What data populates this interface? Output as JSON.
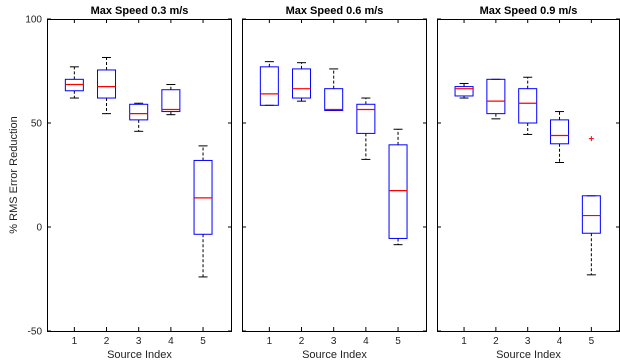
{
  "colors": {
    "box": "#0000ff",
    "median": "#ff0000",
    "whisker": "#000000",
    "outlier": "#ff0000",
    "axes": "#000000"
  },
  "chart_data": {
    "type": "boxplot",
    "ylabel": "% RMS Error Reduction",
    "ylim": [
      -50,
      100
    ],
    "yticks": [
      -50,
      0,
      50,
      100
    ],
    "grid": false,
    "panels": [
      {
        "title": "Max Speed 0.3 m/s",
        "xlabel": "Source Index",
        "categories": [
          "1",
          "2",
          "3",
          "4",
          "5"
        ],
        "boxes": [
          {
            "min": 62,
            "q1": 65.5,
            "median": 68.5,
            "q3": 71,
            "max": 77,
            "outliers": []
          },
          {
            "min": 54.5,
            "q1": 62,
            "median": 67.5,
            "q3": 75.5,
            "max": 81.5,
            "outliers": []
          },
          {
            "min": 46,
            "q1": 51.5,
            "median": 54.5,
            "q3": 59,
            "max": 59.5,
            "outliers": []
          },
          {
            "min": 54,
            "q1": 55.5,
            "median": 56.5,
            "q3": 66,
            "max": 68.5,
            "outliers": []
          },
          {
            "min": -24,
            "q1": -3.5,
            "median": 14,
            "q3": 32,
            "max": 39,
            "outliers": []
          }
        ]
      },
      {
        "title": "Max Speed 0.6 m/s",
        "xlabel": "Source Index",
        "categories": [
          "1",
          "2",
          "3",
          "4",
          "5"
        ],
        "boxes": [
          {
            "min": 58.5,
            "q1": 58.5,
            "median": 64,
            "q3": 77,
            "max": 79.5,
            "outliers": []
          },
          {
            "min": 60.5,
            "q1": 62,
            "median": 66.5,
            "q3": 76,
            "max": 79,
            "outliers": []
          },
          {
            "min": 56,
            "q1": 56,
            "median": 56.5,
            "q3": 66.5,
            "max": 76,
            "outliers": []
          },
          {
            "min": 32.5,
            "q1": 45,
            "median": 56.5,
            "q3": 59,
            "max": 62,
            "outliers": []
          },
          {
            "min": -8.5,
            "q1": -5.5,
            "median": 17.5,
            "q3": 39.5,
            "max": 47,
            "outliers": []
          }
        ]
      },
      {
        "title": "Max Speed 0.9 m/s",
        "xlabel": "Source Index",
        "categories": [
          "1",
          "2",
          "3",
          "4",
          "5"
        ],
        "boxes": [
          {
            "min": 62,
            "q1": 63,
            "median": 66.5,
            "q3": 67.5,
            "max": 69,
            "outliers": []
          },
          {
            "min": 52,
            "q1": 54.5,
            "median": 60.5,
            "q3": 71,
            "max": 71,
            "outliers": []
          },
          {
            "min": 44.5,
            "q1": 50,
            "median": 59.5,
            "q3": 66.5,
            "max": 72,
            "outliers": []
          },
          {
            "min": 31,
            "q1": 40,
            "median": 44,
            "q3": 51.5,
            "max": 55.5,
            "outliers": []
          },
          {
            "min": -23,
            "q1": -3,
            "median": 5.5,
            "q3": 15,
            "max": 15,
            "outliers": [
              42.5
            ]
          }
        ]
      }
    ]
  }
}
